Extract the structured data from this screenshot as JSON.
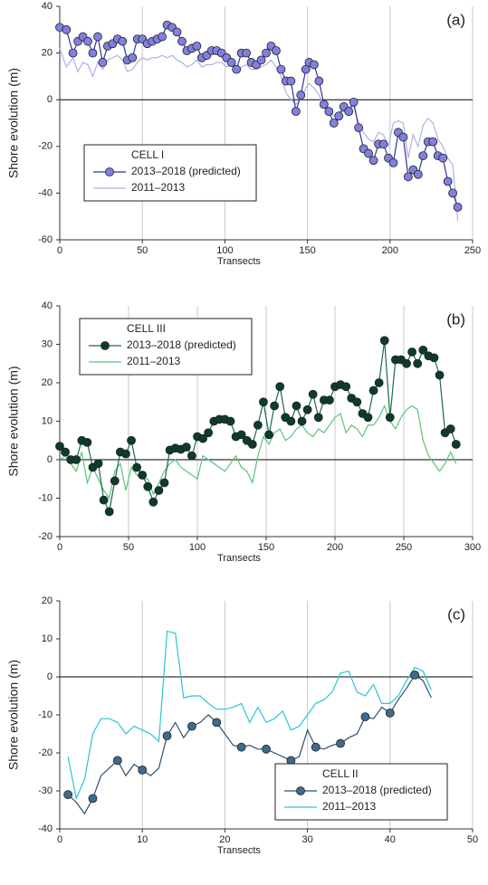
{
  "chart_data": [
    {
      "type": "line",
      "panel_label": "(a)",
      "legend_title": "CELL I",
      "xlabel": "Transects",
      "ylabel": "Shore evolution (m)",
      "xlim": [
        0,
        250
      ],
      "xticks": [
        0,
        50,
        100,
        150,
        200,
        250
      ],
      "ylim": [
        -60,
        40
      ],
      "yticks": [
        -60,
        -40,
        -20,
        0,
        20,
        40
      ],
      "grid": true,
      "legend": "lower left",
      "x": [
        0,
        4,
        8,
        11,
        14,
        17,
        20,
        23,
        26,
        29,
        32,
        35,
        38,
        41,
        44,
        47,
        50,
        53,
        56,
        59,
        62,
        65,
        68,
        71,
        74,
        77,
        80,
        83,
        86,
        89,
        92,
        95,
        98,
        101,
        104,
        107,
        110,
        113,
        116,
        119,
        122,
        125,
        128,
        131,
        134,
        137,
        140,
        143,
        146,
        149,
        151,
        154,
        157,
        160,
        163,
        166,
        169,
        172,
        175,
        178,
        181,
        184,
        187,
        190,
        193,
        196,
        199,
        202,
        205,
        208,
        211,
        214,
        217,
        220,
        223,
        226,
        229,
        232,
        235,
        238,
        241
      ],
      "series": [
        {
          "name": "2013–2018 (predicted)",
          "color": "#333399",
          "marker_color": "#8080e0",
          "markers": true,
          "values": [
            31,
            30,
            20,
            25,
            27,
            25,
            20,
            27,
            16,
            23,
            24,
            26,
            25,
            17,
            18,
            26,
            26,
            24,
            25,
            26,
            27,
            32,
            31,
            29,
            25,
            21,
            22,
            23,
            18,
            19,
            21,
            21,
            20,
            18,
            16,
            13,
            20,
            20,
            16,
            15,
            17,
            20,
            23,
            21,
            13,
            8,
            8,
            -5,
            2,
            13,
            16,
            15,
            8,
            -2,
            -5,
            -10,
            -7,
            -3,
            -5,
            -1,
            -12,
            -21,
            -23,
            -26,
            -19,
            -19,
            -25,
            -27,
            -14,
            -16,
            -33,
            -30,
            -32,
            -24,
            -18,
            -18,
            -24,
            -25,
            -35,
            -40,
            -46
          ]
        },
        {
          "name": "2011–2013",
          "color": "#b0b0e8",
          "markers": false,
          "values": [
            22,
            14,
            18,
            12,
            16,
            15,
            10,
            16,
            13,
            17,
            18,
            19,
            17,
            12,
            13,
            16,
            18,
            17,
            18,
            18,
            19,
            18,
            19,
            17,
            16,
            14,
            15,
            17,
            14,
            15,
            15,
            16,
            16,
            14,
            15,
            12,
            14,
            15,
            13,
            13,
            14,
            15,
            17,
            14,
            10,
            3,
            0,
            -2,
            0,
            5,
            7,
            5,
            2,
            -2,
            -4,
            -7,
            -5,
            -5,
            -3,
            -3,
            -10,
            -14,
            -17,
            -18,
            -14,
            -15,
            -20,
            -10,
            -9,
            -10,
            -25,
            -15,
            -20,
            -11,
            -8,
            -10,
            -17,
            -20,
            -25,
            -28,
            -52
          ]
        }
      ]
    },
    {
      "type": "line",
      "panel_label": "(b)",
      "legend_title": "CELL III",
      "xlabel": "Transects",
      "ylabel": "Shore evolution (m)",
      "xlim": [
        0,
        300
      ],
      "xticks": [
        0,
        50,
        100,
        150,
        200,
        250,
        300
      ],
      "ylim": [
        -20,
        40
      ],
      "yticks": [
        -20,
        -10,
        0,
        10,
        20,
        30,
        40
      ],
      "grid": true,
      "legend": "upper left",
      "x": [
        0,
        4,
        8,
        12,
        16,
        20,
        24,
        28,
        32,
        36,
        40,
        44,
        48,
        52,
        56,
        60,
        64,
        68,
        72,
        76,
        80,
        84,
        88,
        92,
        96,
        100,
        104,
        108,
        112,
        116,
        120,
        124,
        128,
        132,
        136,
        140,
        144,
        148,
        152,
        156,
        160,
        164,
        168,
        172,
        176,
        180,
        184,
        188,
        192,
        196,
        200,
        204,
        208,
        212,
        216,
        220,
        224,
        228,
        232,
        236,
        240,
        244,
        248,
        252,
        256,
        260,
        264,
        268,
        272,
        276,
        280,
        284,
        288
      ],
      "series": [
        {
          "name": "2013–2018 (predicted)",
          "color": "#1a6b40",
          "marker_color": "#0d3b2e",
          "markers": true,
          "values": [
            3.5,
            2,
            0,
            0,
            5,
            4.5,
            -2,
            -1,
            -10.5,
            -13.5,
            -5.5,
            2,
            1.5,
            5,
            -2,
            -4,
            -7,
            -11,
            -8,
            -6,
            2.5,
            3,
            2.7,
            3.3,
            1,
            6,
            5.5,
            7,
            10,
            10.5,
            10.5,
            10,
            6,
            6.5,
            5,
            4,
            9,
            15,
            6.5,
            14,
            19,
            11,
            10,
            14,
            10,
            13,
            17,
            11,
            15.5,
            15.5,
            19,
            19.5,
            19,
            16,
            15,
            12,
            11,
            18,
            20,
            31,
            11,
            26,
            26,
            25,
            28,
            25,
            28.5,
            27,
            26.5,
            22,
            7,
            8,
            4
          ]
        },
        {
          "name": "2011–2013",
          "color": "#5cc47a",
          "markers": false,
          "values": [
            0,
            1,
            -1,
            -3,
            2,
            -6,
            -2,
            -5,
            -8,
            -10,
            -3,
            -1,
            -8,
            -2,
            -4,
            -5,
            -5,
            -9,
            -6,
            -3,
            -1,
            0,
            -2,
            -3,
            -4,
            -5,
            1,
            0,
            -1,
            -2,
            -3,
            -1,
            1,
            -2,
            -3,
            -6,
            1,
            6,
            4,
            7,
            8,
            5,
            6,
            8,
            9,
            7,
            6,
            8,
            7,
            9,
            11,
            12,
            7,
            9,
            8,
            6,
            9,
            9,
            11,
            14,
            10,
            8,
            11,
            13,
            14,
            13,
            5,
            1,
            -1,
            -3,
            -1,
            2,
            -1
          ]
        }
      ]
    },
    {
      "type": "line",
      "panel_label": "(c)",
      "legend_title": "CELL II",
      "xlabel": "Transects",
      "ylabel": "Shore evolution (m)",
      "xlim": [
        0,
        50
      ],
      "xticks": [
        0,
        10,
        20,
        30,
        40,
        50
      ],
      "ylim": [
        -40,
        20
      ],
      "yticks": [
        -40,
        -30,
        -20,
        -10,
        0,
        10,
        20
      ],
      "grid": true,
      "legend": "lower right",
      "marker_every": 3,
      "x": [
        1,
        2,
        3,
        4,
        5,
        6,
        7,
        8,
        9,
        10,
        11,
        12,
        13,
        14,
        15,
        16,
        17,
        18,
        19,
        20,
        21,
        22,
        23,
        24,
        25,
        26,
        27,
        28,
        29,
        30,
        31,
        32,
        33,
        34,
        35,
        36,
        37,
        38,
        39,
        40,
        41,
        42,
        43,
        44,
        45
      ],
      "series": [
        {
          "name": "2013–2018 (predicted)",
          "color": "#2f4f6f",
          "marker_color": "#3d6b8f",
          "markers": true,
          "values": [
            -31,
            -33,
            -36,
            -32,
            -26,
            -24,
            -22,
            -26,
            -23,
            -24.5,
            -26,
            -24,
            -15.5,
            -12,
            -16,
            -13,
            -12,
            -10,
            -12,
            -15,
            -18,
            -18.5,
            -18,
            -19,
            -19,
            -20,
            -21,
            -22,
            -21,
            -14,
            -18.5,
            -19,
            -18,
            -17.5,
            -16,
            -15,
            -10.5,
            -11,
            -8,
            -9.5,
            -6,
            -3,
            0.5,
            -1,
            -5.5
          ]
        },
        {
          "name": "2011–2013",
          "color": "#2bc4d8",
          "markers": false,
          "values": [
            -21,
            -32,
            -27,
            -15,
            -11,
            -11,
            -12,
            -15,
            -13,
            -14,
            -15,
            -17,
            12,
            11.5,
            -5.5,
            -5,
            -5,
            -7,
            -8.5,
            -8.5,
            -8,
            -7,
            -12,
            -8,
            -12,
            -11,
            -9,
            -14,
            -13,
            -10,
            -7,
            -6,
            -4,
            1,
            1.5,
            -4,
            -5,
            -2,
            -7,
            -7,
            -5,
            -1,
            2.5,
            1.5,
            -3.5
          ]
        }
      ]
    }
  ]
}
